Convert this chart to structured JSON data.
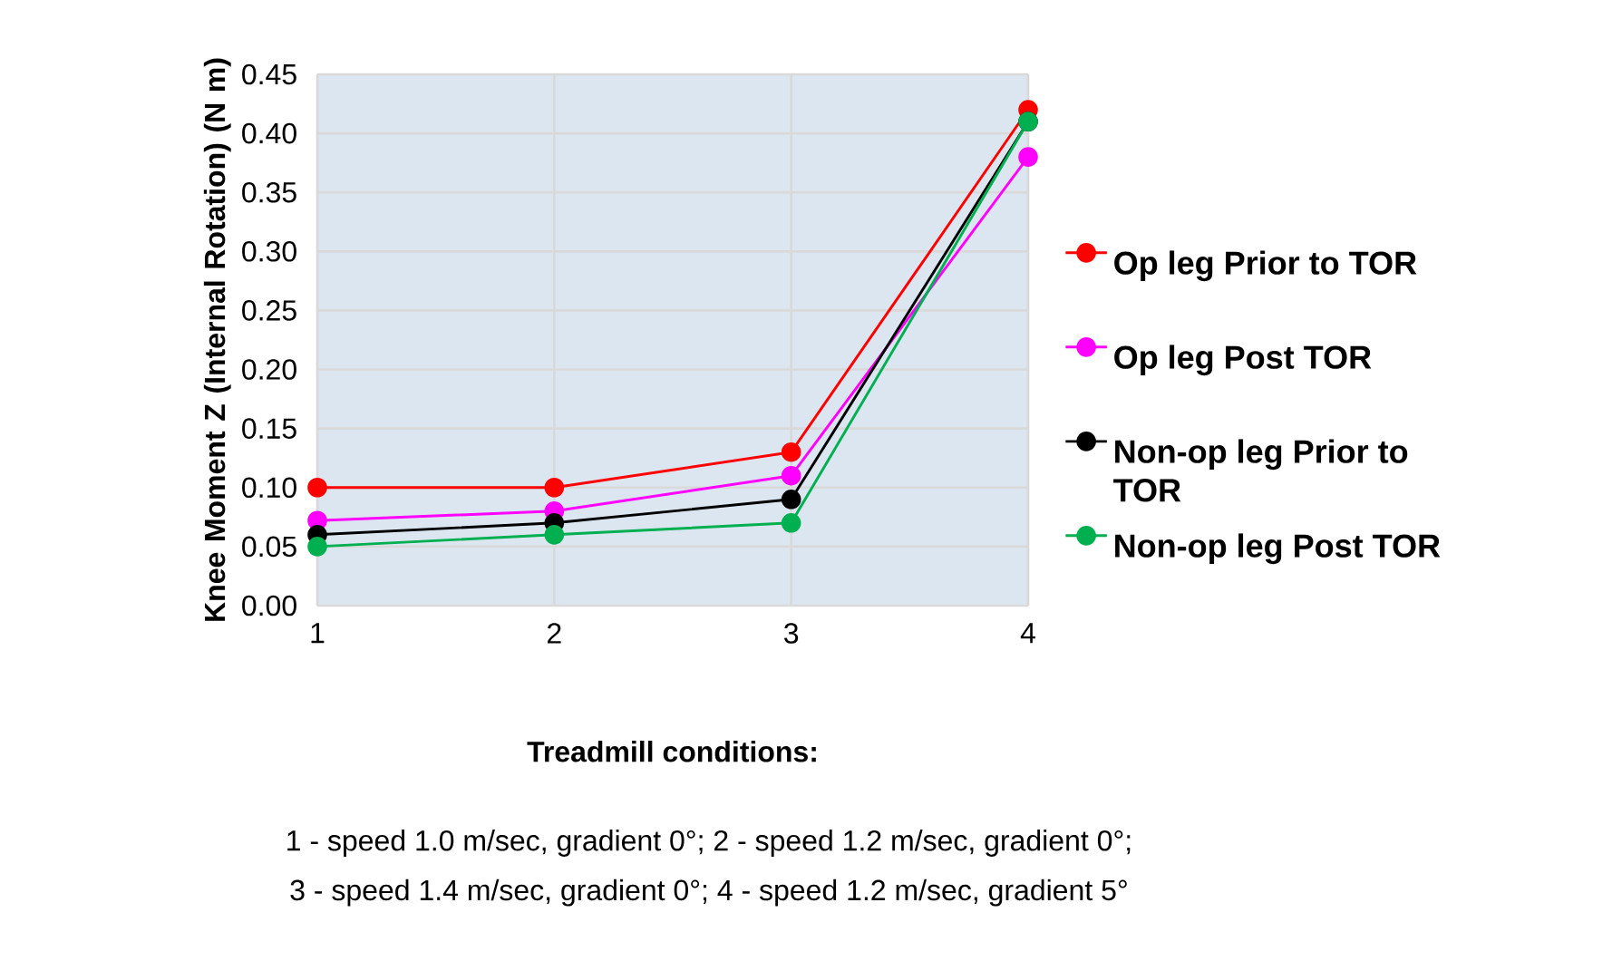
{
  "chart_data": {
    "type": "line",
    "xlabel": "Treadmill conditions:",
    "ylabel": "Knee Moment Z (Internal Rotation) (N m)",
    "annotations": [
      "1 - speed 1.0 m/sec, gradient 0°; 2 - speed 1.2 m/sec, gradient 0°;",
      "3 - speed 1.4 m/sec, gradient 0°; 4 - speed 1.2 m/sec, gradient 5°"
    ],
    "x": [
      1,
      2,
      3,
      4
    ],
    "series": [
      {
        "name": "Op leg Prior to TOR",
        "color": "#ff0000",
        "values": [
          0.1,
          0.1,
          0.13,
          0.42
        ]
      },
      {
        "name": "Op leg Post TOR",
        "color": "#ff00ff",
        "values": [
          0.072,
          0.08,
          0.11,
          0.38
        ]
      },
      {
        "name": "Non-op leg Prior to TOR",
        "color": "#000000",
        "values": [
          0.06,
          0.07,
          0.09,
          0.41
        ]
      },
      {
        "name": "Non-op leg Post TOR",
        "color": "#00b050",
        "values": [
          0.05,
          0.06,
          0.07,
          0.41
        ]
      }
    ],
    "xlim": [
      1,
      4
    ],
    "xticks": [
      1,
      2,
      3,
      4
    ],
    "ylim": [
      0,
      0.45
    ],
    "yticks": [
      {
        "value": 0,
        "label": "0.00"
      },
      {
        "value": 0.05,
        "label": "0.05"
      },
      {
        "value": 0.1,
        "label": "0.10"
      },
      {
        "value": 0.15,
        "label": "0.15"
      },
      {
        "value": 0.2,
        "label": "0.20"
      },
      {
        "value": 0.25,
        "label": "0.25"
      },
      {
        "value": 0.3,
        "label": "0.30"
      },
      {
        "value": 0.35,
        "label": "0.35"
      },
      {
        "value": 0.4,
        "label": "0.40"
      },
      {
        "value": 0.45,
        "label": "0.45"
      }
    ],
    "grid": true,
    "legend": "right",
    "marker": "circle",
    "line_style": "solid"
  }
}
